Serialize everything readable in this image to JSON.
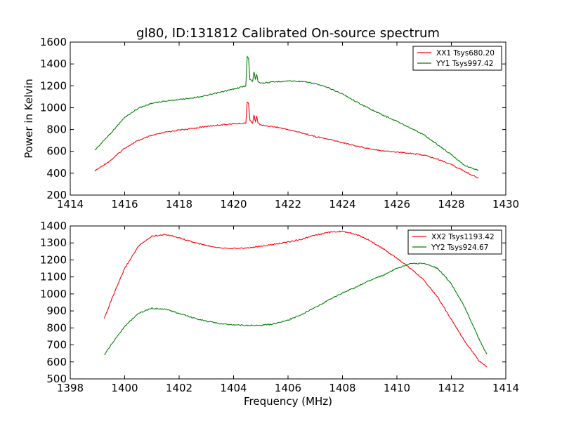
{
  "chart_data": [
    {
      "type": "line",
      "title": "gl80, ID:131812 Calibrated On-source spectrum",
      "xlabel": "",
      "ylabel": "Power in Kelvin",
      "xlim": [
        1414,
        1430
      ],
      "ylim": [
        200,
        1600
      ],
      "xticks": [
        1414,
        1416,
        1418,
        1420,
        1422,
        1424,
        1426,
        1428,
        1430
      ],
      "yticks": [
        200,
        400,
        600,
        800,
        1000,
        1200,
        1400,
        1600
      ],
      "grid": false,
      "legend_position": "top-right",
      "series": [
        {
          "name": "XX1 Tsys680.20",
          "color": "#ff0000",
          "x": [
            1414.9,
            1415.5,
            1416.0,
            1416.5,
            1417.0,
            1417.5,
            1418.0,
            1418.5,
            1419.0,
            1419.5,
            1420.0,
            1420.3,
            1420.45,
            1420.5,
            1420.55,
            1420.6,
            1420.7,
            1420.75,
            1420.8,
            1420.85,
            1420.9,
            1421.0,
            1421.5,
            1422.0,
            1422.5,
            1423.0,
            1423.5,
            1424.0,
            1424.5,
            1425.0,
            1425.5,
            1426.0,
            1426.5,
            1427.0,
            1427.5,
            1428.0,
            1428.5,
            1429.0
          ],
          "y": [
            420,
            520,
            630,
            700,
            745,
            775,
            795,
            810,
            828,
            842,
            852,
            855,
            860,
            1055,
            1040,
            880,
            860,
            930,
            870,
            920,
            860,
            840,
            825,
            800,
            770,
            735,
            710,
            680,
            650,
            625,
            605,
            593,
            583,
            565,
            528,
            480,
            415,
            355
          ]
        },
        {
          "name": "YY1 Tsys997.42",
          "color": "#008000",
          "x": [
            1414.9,
            1415.5,
            1416.0,
            1416.5,
            1417.0,
            1417.5,
            1418.0,
            1418.5,
            1419.0,
            1419.5,
            1420.0,
            1420.3,
            1420.45,
            1420.5,
            1420.55,
            1420.6,
            1420.7,
            1420.75,
            1420.8,
            1420.85,
            1420.9,
            1421.0,
            1421.5,
            1422.0,
            1422.5,
            1423.0,
            1423.5,
            1424.0,
            1424.5,
            1425.0,
            1425.5,
            1426.0,
            1426.5,
            1427.0,
            1427.5,
            1428.0,
            1428.5,
            1429.0
          ],
          "y": [
            610,
            770,
            910,
            995,
            1040,
            1060,
            1075,
            1090,
            1110,
            1140,
            1170,
            1190,
            1200,
            1465,
            1450,
            1260,
            1240,
            1330,
            1260,
            1310,
            1240,
            1225,
            1235,
            1245,
            1240,
            1220,
            1180,
            1125,
            1055,
            990,
            930,
            875,
            815,
            750,
            660,
            570,
            470,
            425
          ]
        }
      ]
    },
    {
      "type": "line",
      "title": "",
      "xlabel": "Frequency (MHz)",
      "ylabel": "",
      "xlim": [
        1398,
        1414
      ],
      "ylim": [
        500,
        1400
      ],
      "xticks": [
        1398,
        1400,
        1402,
        1404,
        1406,
        1408,
        1410,
        1412,
        1414
      ],
      "yticks": [
        500,
        600,
        700,
        800,
        900,
        1000,
        1100,
        1200,
        1300,
        1400
      ],
      "grid": false,
      "legend_position": "top-right",
      "series": [
        {
          "name": "XX2 Tsys1193.42",
          "color": "#ff0000",
          "x": [
            1399.25,
            1399.5,
            1400.0,
            1400.5,
            1401.0,
            1401.5,
            1402.0,
            1402.5,
            1403.0,
            1403.5,
            1404.0,
            1404.5,
            1405.0,
            1405.5,
            1406.0,
            1406.5,
            1407.0,
            1407.5,
            1408.0,
            1408.5,
            1409.0,
            1409.5,
            1410.0,
            1410.5,
            1411.0,
            1411.5,
            1412.0,
            1412.5,
            1413.0,
            1413.3
          ],
          "y": [
            855,
            960,
            1150,
            1280,
            1340,
            1350,
            1330,
            1305,
            1285,
            1272,
            1268,
            1270,
            1280,
            1292,
            1305,
            1322,
            1345,
            1362,
            1368,
            1350,
            1315,
            1265,
            1210,
            1150,
            1080,
            980,
            850,
            720,
            610,
            570
          ]
        },
        {
          "name": "YY2 Tsys924.67",
          "color": "#008000",
          "x": [
            1399.25,
            1399.5,
            1400.0,
            1400.5,
            1401.0,
            1401.5,
            1402.0,
            1402.5,
            1403.0,
            1403.5,
            1404.0,
            1404.5,
            1405.0,
            1405.5,
            1406.0,
            1406.5,
            1407.0,
            1407.5,
            1408.0,
            1408.5,
            1409.0,
            1409.5,
            1410.0,
            1410.5,
            1411.0,
            1411.5,
            1412.0,
            1412.5,
            1413.0,
            1413.3
          ],
          "y": [
            640,
            700,
            810,
            885,
            915,
            910,
            885,
            860,
            840,
            825,
            818,
            815,
            815,
            825,
            845,
            880,
            920,
            965,
            1005,
            1040,
            1080,
            1110,
            1150,
            1178,
            1180,
            1150,
            1060,
            920,
            740,
            645
          ]
        }
      ]
    }
  ]
}
